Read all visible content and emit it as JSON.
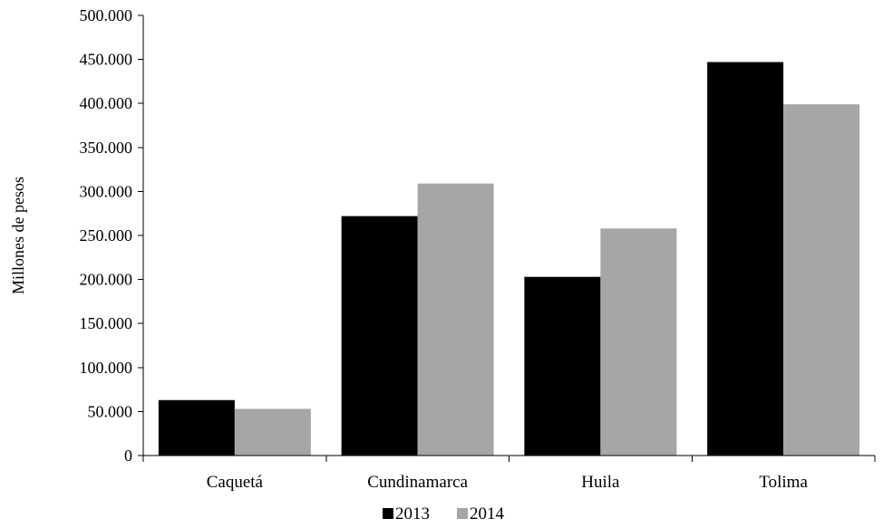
{
  "chart_data": {
    "type": "bar",
    "categories": [
      "Caquetá",
      "Cundinamarca",
      "Huila",
      "Tolima"
    ],
    "series": [
      {
        "name": "2013",
        "values": [
          63000,
          272000,
          203000,
          447000
        ],
        "color": "#000000"
      },
      {
        "name": "2014",
        "values": [
          53000,
          309000,
          258000,
          399000
        ],
        "color": "#a6a6a6"
      }
    ],
    "ylabel": "Millones de pesos",
    "xlabel": "",
    "ylim": [
      0,
      500000
    ],
    "yticks": [
      0,
      50000,
      100000,
      150000,
      200000,
      250000,
      300000,
      350000,
      400000,
      450000,
      500000
    ],
    "ytick_labels": [
      "0",
      "50.000",
      "100.000",
      "150.000",
      "200.000",
      "250.000",
      "300.000",
      "350.000",
      "400.000",
      "450.000",
      "500.000"
    ],
    "grid": false,
    "legend_position": "bottom"
  }
}
